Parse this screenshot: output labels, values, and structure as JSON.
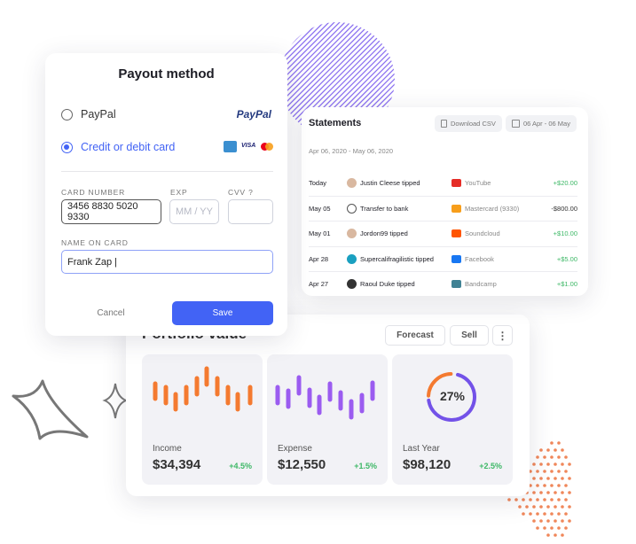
{
  "payout": {
    "title": "Payout method",
    "options": [
      {
        "label": "PayPal",
        "selected": false,
        "logo": "PayPal"
      },
      {
        "label": "Credit or debit card",
        "selected": true,
        "logos": [
          "amex-icon",
          "VISA",
          "mastercard-icon"
        ]
      }
    ],
    "card_number_label": "CARD NUMBER",
    "card_number_value": "3456 8830 5020 9330",
    "exp_label": "EXP",
    "exp_placeholder": "MM / YY",
    "cvv_label": "CVV",
    "name_label": "NAME ON CARD",
    "name_value": "Frank Zap |",
    "cancel": "Cancel",
    "save": "Save",
    "accent": "#4263f5"
  },
  "statements": {
    "title": "Statements",
    "download": "Download CSV",
    "date_range_button": "06 Apr - 06 May",
    "range": "Apr 06, 2020 - May 06, 2020",
    "rows": [
      {
        "date": "Today",
        "name": "Justin Cleese tipped",
        "source": "YouTube",
        "amount": "+$20.00",
        "positive": true
      },
      {
        "date": "May 05",
        "name": "Transfer to bank",
        "source": "Mastercard (9330)",
        "amount": "-$800.00",
        "positive": false
      },
      {
        "date": "May 01",
        "name": "Jordon99 tipped",
        "source": "Soundcloud",
        "amount": "+$10.00",
        "positive": true
      },
      {
        "date": "Apr 28",
        "name": "Supercalifragilistic tipped",
        "source": "Facebook",
        "amount": "+$5.00",
        "positive": true
      },
      {
        "date": "Apr 27",
        "name": "Raoul Duke tipped",
        "source": "Bandcamp",
        "amount": "+$1.00",
        "positive": true
      }
    ]
  },
  "portfolio": {
    "title": "Portfolio value",
    "forecast": "Forecast",
    "sell": "Sell",
    "tiles": [
      {
        "label": "Income",
        "value": "$34,394",
        "change": "+4.5%",
        "color": "#f47a30"
      },
      {
        "label": "Expense",
        "value": "$12,550",
        "change": "+1.5%",
        "color": "#9b5cf0"
      },
      {
        "label": "Last Year",
        "value": "$98,120",
        "change": "+2.5%",
        "percent": 27
      }
    ]
  }
}
